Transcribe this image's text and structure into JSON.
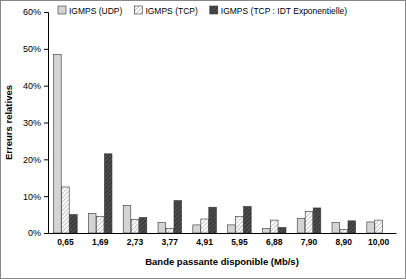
{
  "chart_data": {
    "type": "bar",
    "x_label": "Bande passante disponible (Mb/s)",
    "y_label": "Erreurs relatives",
    "categories": [
      "0,65",
      "1,69",
      "2,73",
      "3,77",
      "4,91",
      "5,95",
      "6,88",
      "7,90",
      "8,90",
      "10,00"
    ],
    "series": [
      {
        "name": "IGMPS (UDP)",
        "color": "#d4d4d4",
        "values": [
          48.5,
          5.3,
          7.5,
          2.8,
          2.2,
          2.2,
          1.2,
          4.0,
          2.8,
          3.0
        ]
      },
      {
        "name": "IGMPS (TCP)",
        "color": "#a9a9a9",
        "values": [
          12.5,
          4.5,
          3.7,
          1.2,
          3.8,
          4.5,
          3.5,
          5.8,
          1.0,
          3.5
        ]
      },
      {
        "name": "IGMPS (TCP : IDT Exponentielle)",
        "color": "#4f4f4f",
        "values": [
          5.0,
          21.5,
          4.2,
          8.8,
          7.0,
          7.2,
          1.5,
          6.8,
          3.3,
          null
        ]
      }
    ],
    "ylim": [
      0,
      60
    ],
    "yticks": [
      {
        "value": 0,
        "label": "0%"
      },
      {
        "value": 10,
        "label": "10%"
      },
      {
        "value": 20,
        "label": "20%"
      },
      {
        "value": 30,
        "label": "30%"
      },
      {
        "value": 40,
        "label": "40%"
      },
      {
        "value": 50,
        "label": "50%"
      },
      {
        "value": 60,
        "label": "60%"
      }
    ],
    "grid": false,
    "legend": "top"
  }
}
